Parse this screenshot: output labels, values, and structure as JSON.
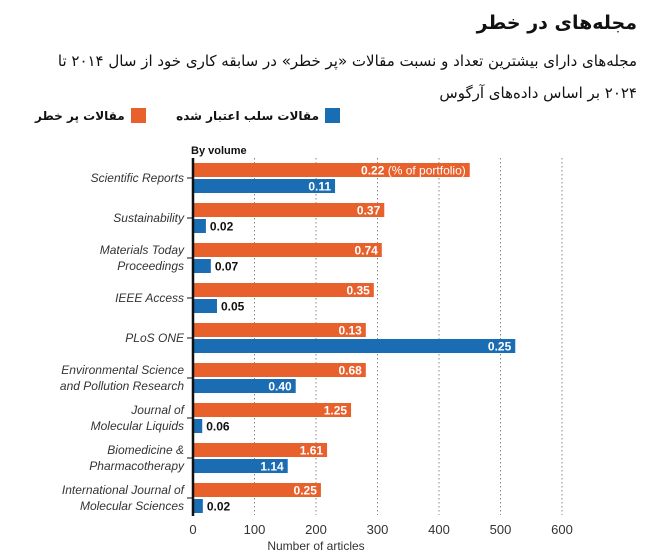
{
  "header": {
    "title": "مجله‌های در خطر",
    "subtitle_line1": "مجله‌های دارای بیشترین تعداد و نسبت مقالات «پر خطر» در سابقه کاری خود از سال ۲۰۱۴ تا",
    "subtitle_line2": "۲۰۲۴ بر اساس داده‌های آرگوس"
  },
  "chart_data": {
    "type": "bar",
    "orientation": "horizontal",
    "title": "By volume",
    "xlabel": "Number of articles",
    "xlim": [
      0,
      600
    ],
    "xticks": [
      "0",
      "100",
      "200",
      "300",
      "400",
      "500",
      "600"
    ],
    "grid": "vertical dotted",
    "legend_placement": "top",
    "categories": [
      "Scientific Reports",
      "Sustainability",
      "Materials Today Proceedings",
      "IEEE Access",
      "PLoS ONE",
      "Environmental Science and Pollution Research",
      "Journal of Molecular Liquids",
      "Biomedicine & Pharmacotherapy",
      "International Journal of Molecular Sciences"
    ],
    "category_lines": [
      [
        "Scientific Reports"
      ],
      [
        "Sustainability"
      ],
      [
        "Materials Today",
        "Proceedings"
      ],
      [
        "IEEE Access"
      ],
      [
        "PLoS ONE"
      ],
      [
        "Environmental Science",
        "and Pollution Research"
      ],
      [
        "Journal of",
        "Molecular Liquids"
      ],
      [
        "Biomedicine &",
        "Pharmacotherapy"
      ],
      [
        "International Journal of",
        "Molecular Sciences"
      ]
    ],
    "series": [
      {
        "name": "مقالات پر خطر",
        "color": "#e8612c",
        "values": [
          450,
          311,
          307,
          294,
          281,
          281,
          257,
          218,
          208
        ],
        "labels": [
          "0.22",
          "0.37",
          "0.74",
          "0.35",
          "0.13",
          "0.68",
          "1.25",
          "1.61",
          "0.25"
        ]
      },
      {
        "name": "مقالات سلب اعتبار شده",
        "color": "#1b6db3",
        "values": [
          231,
          21,
          29,
          39,
          524,
          167,
          15,
          154,
          16
        ],
        "labels": [
          "0.11",
          "0.02",
          "0.07",
          "0.05",
          "0.25",
          "0.40",
          "0.06",
          "1.14",
          "0.02"
        ]
      }
    ],
    "annotation": "(% of portfolio)"
  }
}
